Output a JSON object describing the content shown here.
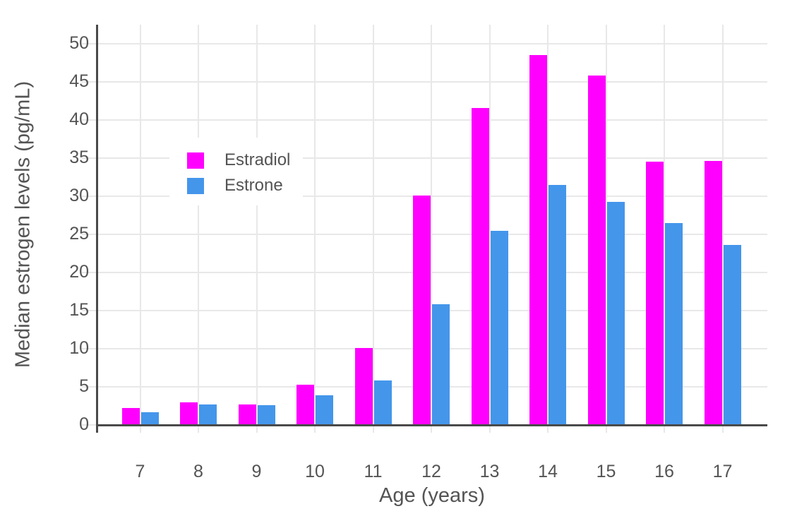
{
  "chart_data": {
    "type": "bar",
    "title": "",
    "xlabel": "Age (years)",
    "ylabel": "Median estrogen levels (pg/mL)",
    "categories": [
      "7",
      "8",
      "9",
      "10",
      "11",
      "12",
      "13",
      "14",
      "15",
      "16",
      "17"
    ],
    "series": [
      {
        "name": "Estradiol",
        "color": "#ff00ff",
        "values": [
          2.2,
          3.0,
          2.7,
          5.3,
          10.1,
          30.1,
          41.6,
          48.5,
          45.8,
          34.5,
          34.6
        ]
      },
      {
        "name": "Estrone",
        "color": "#4496eb",
        "values": [
          1.7,
          2.7,
          2.6,
          3.9,
          5.8,
          15.8,
          25.5,
          31.5,
          29.3,
          26.5,
          23.6
        ]
      }
    ],
    "ylim": [
      0,
      52.5
    ],
    "yticks": [
      0,
      5,
      10,
      15,
      20,
      25,
      30,
      35,
      40,
      45,
      50
    ],
    "grid": true,
    "legend_position": "inside-top-left",
    "units": "pg/mL"
  },
  "colors": {
    "background": "#ffffff",
    "axis_line": "#4a4a4a",
    "gridline": "#e8e8e8",
    "text": "#545454",
    "estradiol": "#ff00ff",
    "estrone": "#4496eb"
  }
}
